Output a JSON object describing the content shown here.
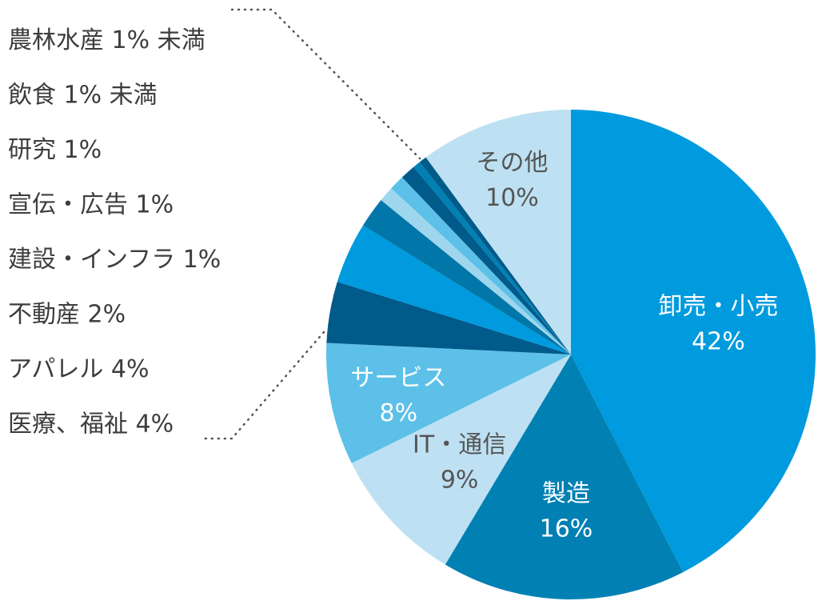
{
  "chart_data": {
    "type": "pie",
    "title": "",
    "start_angle_deg": 0,
    "direction": "clockwise",
    "slices": [
      {
        "label": "卸売・小売",
        "value": 42,
        "value_label": "42%",
        "color": "#009ade",
        "text_color": "#ffffff"
      },
      {
        "label": "製造",
        "value": 16,
        "value_label": "16%",
        "color": "#0080b3",
        "text_color": "#ffffff"
      },
      {
        "label": "IT・通信",
        "value": 9,
        "value_label": "9%",
        "color": "#bde1f2",
        "text_color": "#555555"
      },
      {
        "label": "サービス",
        "value": 8,
        "value_label": "8%",
        "color": "#5cc0e8",
        "text_color": "#ffffff"
      },
      {
        "label": "医療、福祉",
        "value": 4,
        "value_label": "4%",
        "color": "#005a8a",
        "text_color": "#3d3d3d"
      },
      {
        "label": "アパレル",
        "value": 4,
        "value_label": "4%",
        "color": "#009ade",
        "text_color": "#3d3d3d"
      },
      {
        "label": "不動産",
        "value": 2,
        "value_label": "2%",
        "color": "#0077a8",
        "text_color": "#3d3d3d"
      },
      {
        "label": "建設・インフラ",
        "value": 1,
        "value_label": "1%",
        "color": "#9ed6ee",
        "text_color": "#3d3d3d"
      },
      {
        "label": "宣伝・広告",
        "value": 1,
        "value_label": "1%",
        "color": "#5cc0e8",
        "text_color": "#3d3d3d"
      },
      {
        "label": "研究",
        "value": 1,
        "value_label": "1%",
        "color": "#005a8a",
        "text_color": "#3d3d3d"
      },
      {
        "label": "飲食",
        "value": 0.5,
        "value_label": "1% 未満",
        "color": "#0080b3",
        "text_color": "#3d3d3d"
      },
      {
        "label": "農林水産",
        "value": 0.5,
        "value_label": "1% 未満",
        "color": "#005a8a",
        "text_color": "#3d3d3d"
      },
      {
        "label": "その他",
        "value": 10,
        "value_label": "10%",
        "color": "#bde1f2",
        "text_color": "#555555"
      }
    ],
    "inside_labels": [
      "卸売・小売",
      "製造",
      "IT・通信",
      "サービス",
      "その他"
    ],
    "outside_label_order": [
      "農林水産",
      "飲食",
      "研究",
      "宣伝・広告",
      "建設・インフラ",
      "不動産",
      "アパレル",
      "医療、福祉"
    ]
  }
}
